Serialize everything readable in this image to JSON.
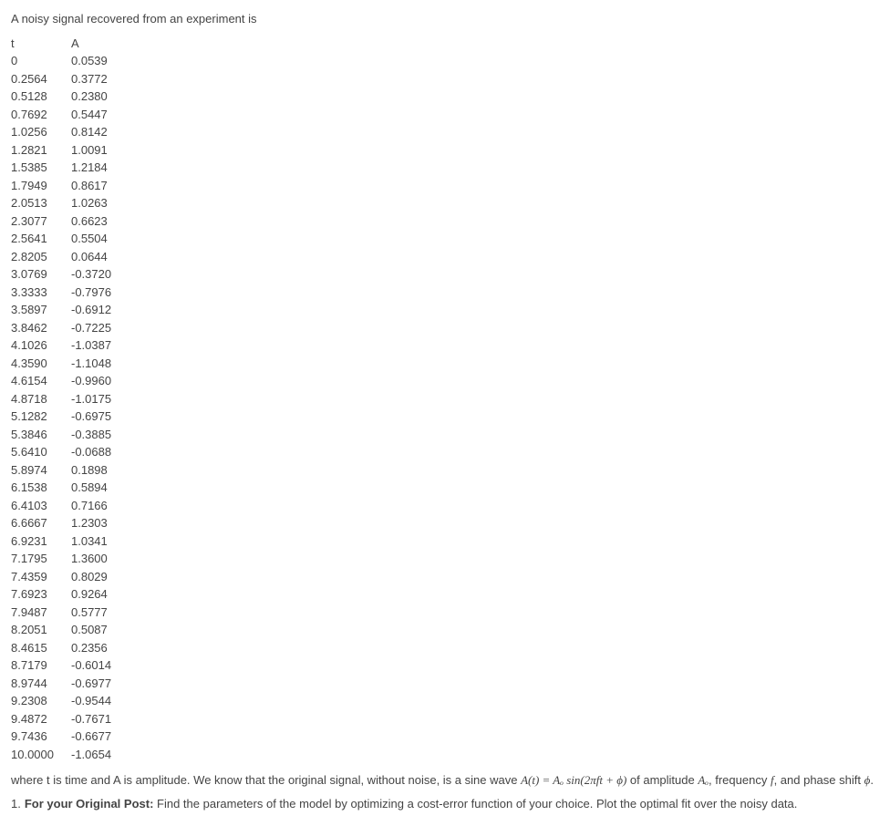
{
  "intro": "A noisy signal recovered from an experiment is",
  "table": {
    "columns": [
      "t",
      "A"
    ],
    "rows": [
      [
        "0",
        "0.0539"
      ],
      [
        "0.2564",
        "0.3772"
      ],
      [
        "0.5128",
        "0.2380"
      ],
      [
        "0.7692",
        "0.5447"
      ],
      [
        "1.0256",
        "0.8142"
      ],
      [
        "1.2821",
        "1.0091"
      ],
      [
        "1.5385",
        "1.2184"
      ],
      [
        "1.7949",
        "0.8617"
      ],
      [
        "2.0513",
        "1.0263"
      ],
      [
        "2.3077",
        "0.6623"
      ],
      [
        "2.5641",
        "0.5504"
      ],
      [
        "2.8205",
        "0.0644"
      ],
      [
        "3.0769",
        "-0.3720"
      ],
      [
        "3.3333",
        "-0.7976"
      ],
      [
        "3.5897",
        "-0.6912"
      ],
      [
        "3.8462",
        "-0.7225"
      ],
      [
        "4.1026",
        "-1.0387"
      ],
      [
        "4.3590",
        "-1.1048"
      ],
      [
        "4.6154",
        "-0.9960"
      ],
      [
        "4.8718",
        "-1.0175"
      ],
      [
        "5.1282",
        "-0.6975"
      ],
      [
        "5.3846",
        "-0.3885"
      ],
      [
        "5.6410",
        "-0.0688"
      ],
      [
        "5.8974",
        "0.1898"
      ],
      [
        "6.1538",
        "0.5894"
      ],
      [
        "6.4103",
        "0.7166"
      ],
      [
        "6.6667",
        "1.2303"
      ],
      [
        "6.9231",
        "1.0341"
      ],
      [
        "7.1795",
        "1.3600"
      ],
      [
        "7.4359",
        "0.8029"
      ],
      [
        "7.6923",
        "0.9264"
      ],
      [
        "7.9487",
        "0.5777"
      ],
      [
        "8.2051",
        "0.5087"
      ],
      [
        "8.4615",
        "0.2356"
      ],
      [
        "8.7179",
        "-0.6014"
      ],
      [
        "8.9744",
        "-0.6977"
      ],
      [
        "9.2308",
        "-0.9544"
      ],
      [
        "9.4872",
        "-0.7671"
      ],
      [
        "9.7436",
        "-0.6677"
      ],
      [
        "10.0000",
        "-1.0654"
      ]
    ]
  },
  "outro_pre": "where t is time and A is amplitude. We know that the original signal, without noise, is a sine wave ",
  "outro_formula": "A(t) = Aₒ sin(2πft + ϕ)",
  "outro_mid": " of amplitude ",
  "outro_Ao": "Aₒ",
  "outro_mid2": ", frequency ",
  "outro_f": "f",
  "outro_mid3": ", and phase shift ",
  "outro_phi": "ϕ",
  "outro_end": ".",
  "task_num": "1.",
  "task_bold": "For your Original Post:",
  "task_rest": " Find the parameters of the model by optimizing a cost-error function of your choice. Plot the optimal fit over the noisy data."
}
